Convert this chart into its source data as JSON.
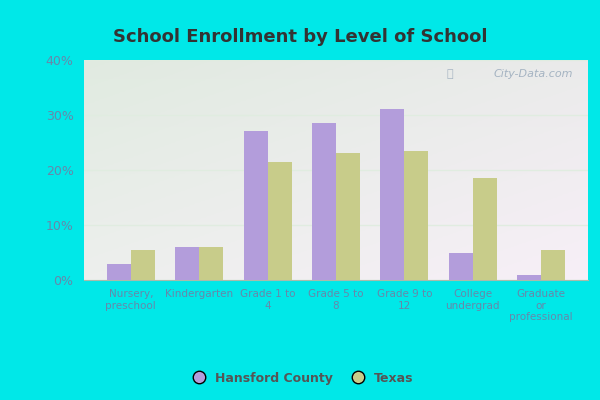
{
  "title": "School Enrollment by Level of School",
  "categories": [
    "Nursery,\npreschool",
    "Kindergarten",
    "Grade 1 to\n4",
    "Grade 5 to\n8",
    "Grade 9 to\n12",
    "College\nundergrad",
    "Graduate\nor\nprofessional"
  ],
  "hansford": [
    3.0,
    6.0,
    27.0,
    28.5,
    31.0,
    5.0,
    1.0
  ],
  "texas": [
    5.5,
    6.0,
    21.5,
    23.0,
    23.5,
    18.5,
    5.5
  ],
  "hansford_color": "#b39ddb",
  "texas_color": "#c8cc8a",
  "ylim": [
    0,
    40
  ],
  "yticks": [
    0,
    10,
    20,
    30,
    40
  ],
  "bar_width": 0.35,
  "legend_labels": [
    "Hansford County",
    "Texas"
  ],
  "watermark": "City-Data.com",
  "outer_bg": "#00e8e8",
  "plot_bg_top": "#f0f8f0",
  "plot_bg_bottom": "#d0eedc",
  "grid_color": "#e0ece0",
  "tick_label_color": "#6688aa",
  "title_color": "#333333"
}
